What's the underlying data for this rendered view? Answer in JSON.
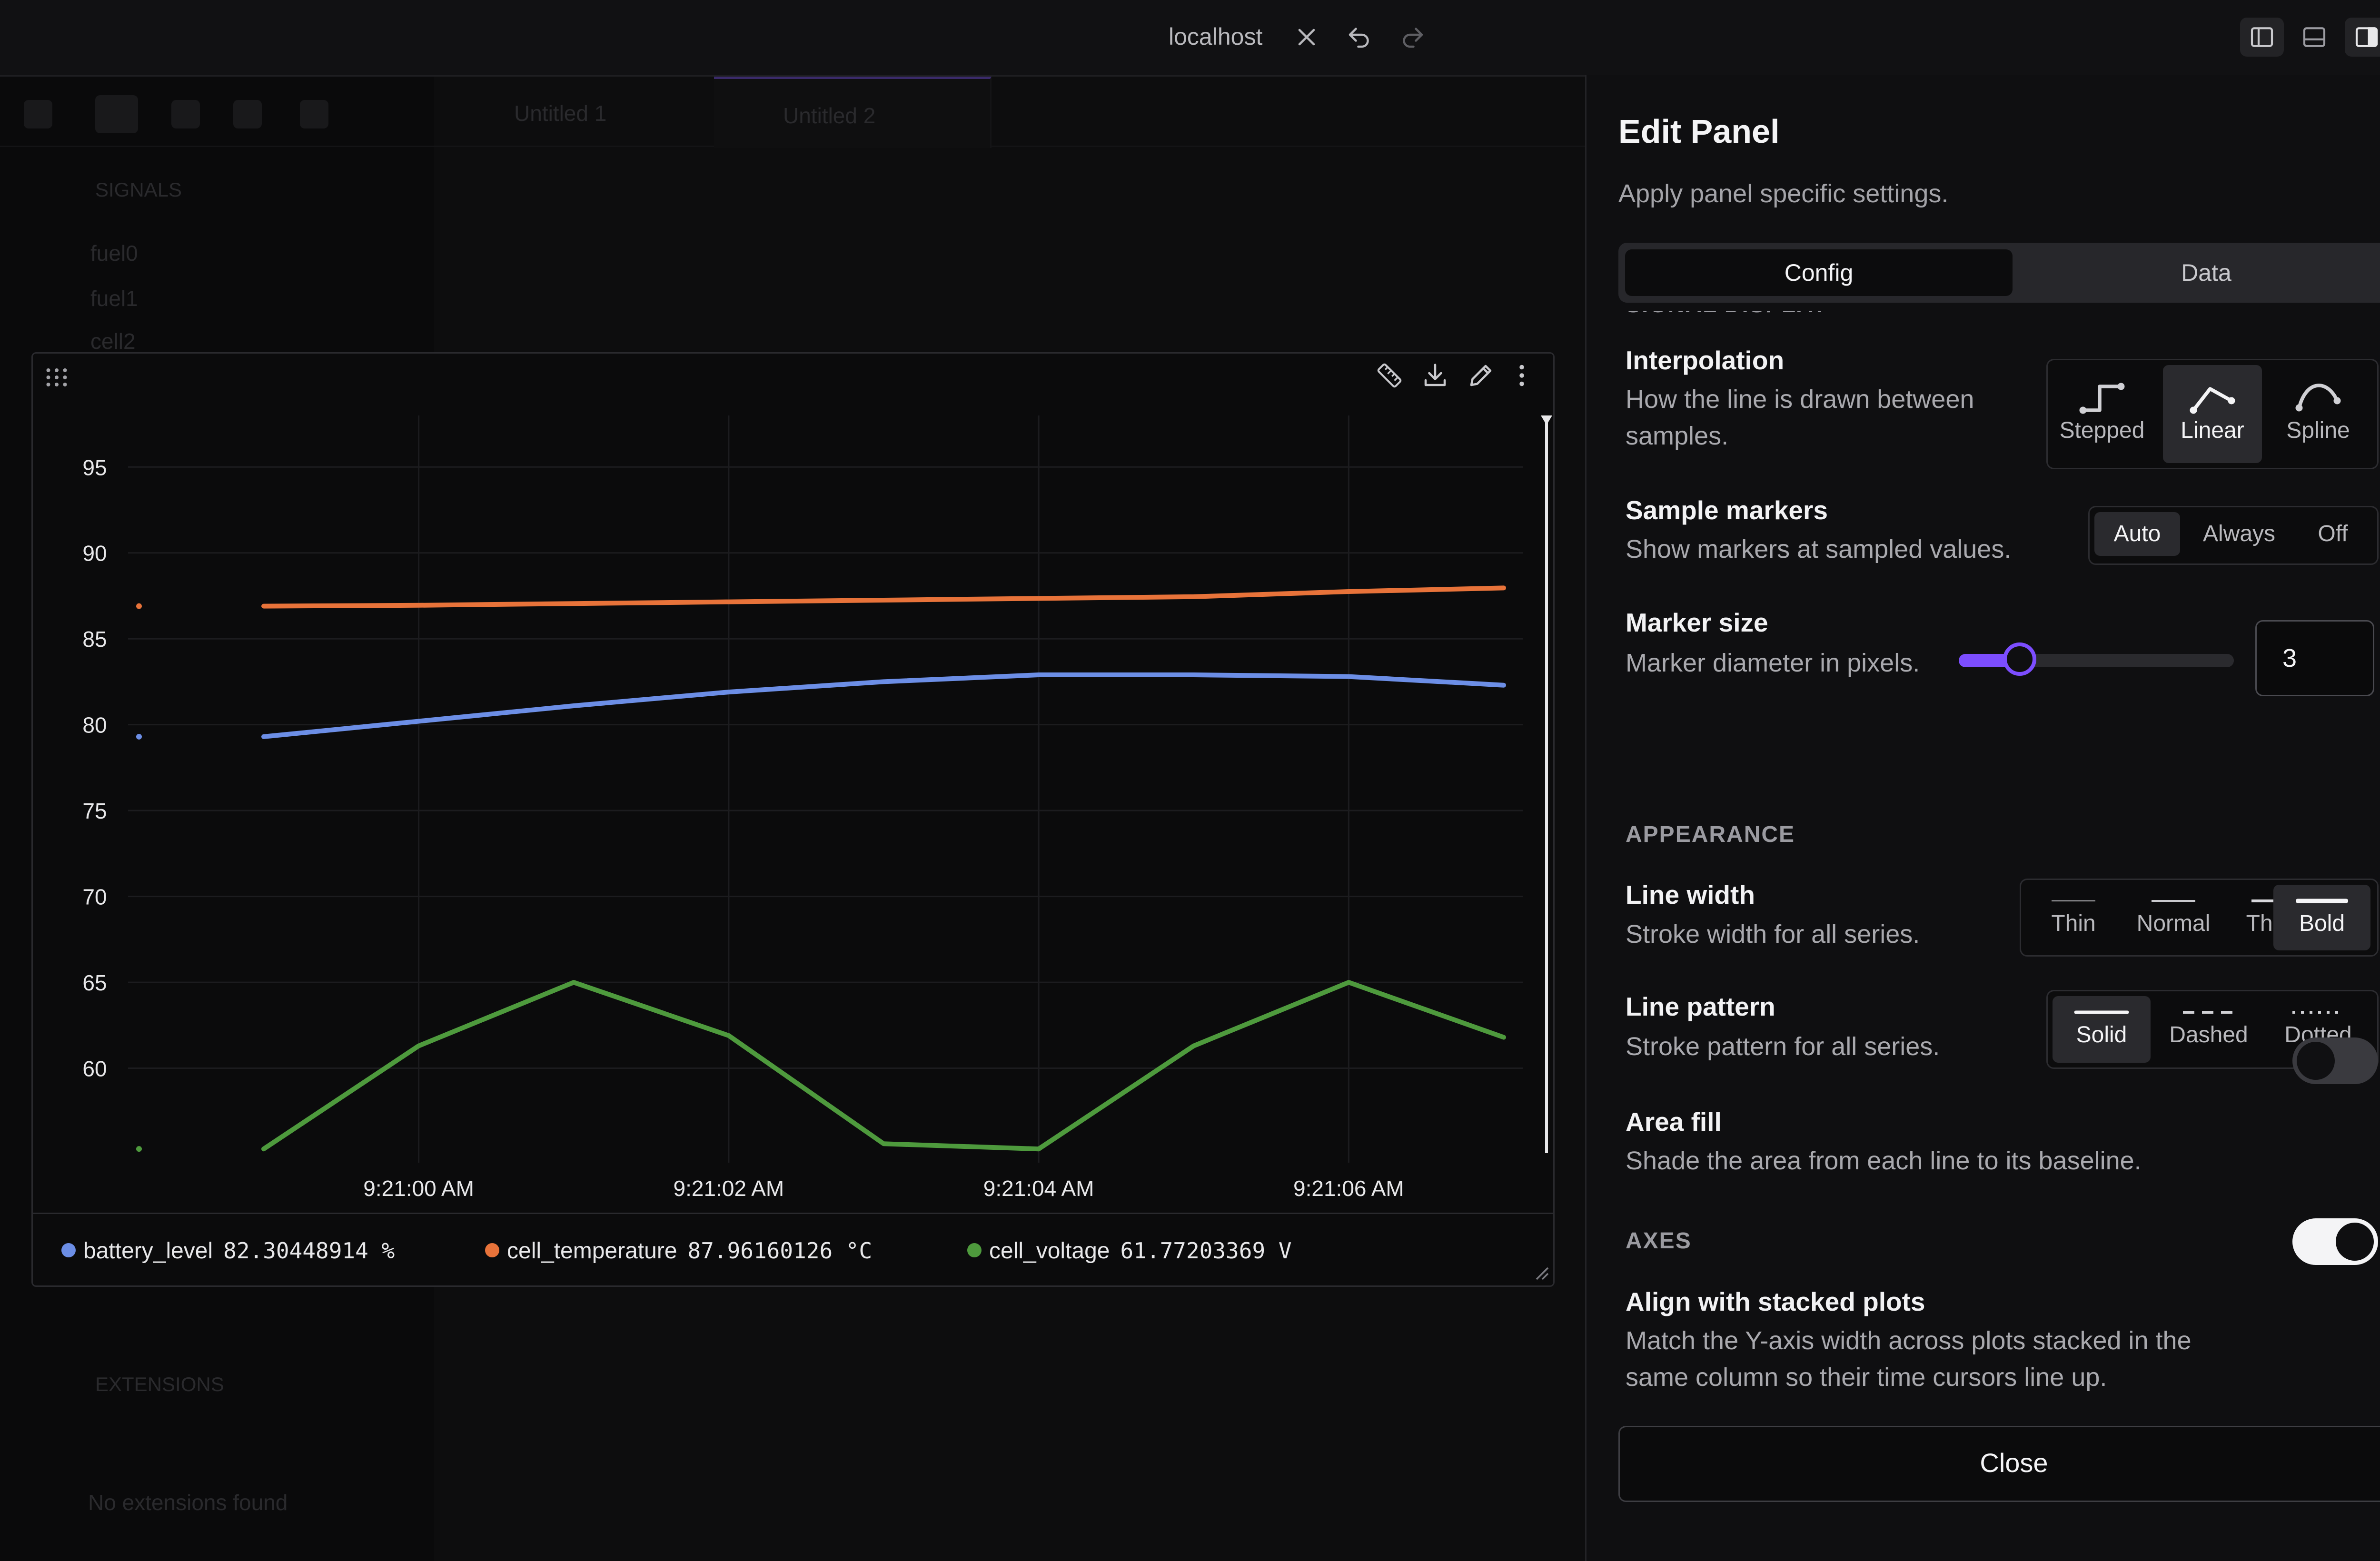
{
  "topbar": {
    "title": "localhost"
  },
  "background_app": {
    "tabs": [
      "Untitled 1",
      "Untitled 2"
    ],
    "sidebar_section": "SIGNALS",
    "sidebar_items": [
      "fuel0",
      "fuel1",
      "cell2"
    ],
    "extensions_title": "EXTENSIONS",
    "extensions_empty": "No extensions found"
  },
  "chart_data": {
    "type": "line",
    "x": [
      "9:20:59",
      "9:21:00",
      "9:21:01",
      "9:21:02",
      "9:21:03",
      "9:21:04",
      "9:21:05",
      "9:21:06",
      "9:21:07"
    ],
    "x_ticks": [
      "9:21:00 AM",
      "9:21:02 AM",
      "9:21:04 AM",
      "9:21:06 AM"
    ],
    "y_ticks": [
      "95",
      "90",
      "85",
      "80",
      "75",
      "70",
      "65",
      "60"
    ],
    "ylim": [
      55,
      98
    ],
    "grid": true,
    "series": [
      {
        "name": "battery_level",
        "color": "#6c8ee6",
        "values": [
          79.3,
          80.2,
          81.1,
          81.9,
          82.5,
          82.9,
          82.9,
          82.8,
          82.3
        ]
      },
      {
        "name": "cell_temperature",
        "color": "#e8733a",
        "values": [
          86.9,
          86.95,
          87.05,
          87.15,
          87.25,
          87.35,
          87.45,
          87.75,
          87.96
        ]
      },
      {
        "name": "cell_voltage",
        "color": "#4e9a3d",
        "values": [
          55.3,
          61.3,
          65.0,
          61.9,
          55.6,
          55.3,
          61.3,
          65.0,
          61.8
        ]
      }
    ]
  },
  "legend": [
    {
      "name": "battery_level",
      "value": "82.30448914 %",
      "color": "#6c8ee6"
    },
    {
      "name": "cell_temperature",
      "value": "87.96160126 °C",
      "color": "#e8733a"
    },
    {
      "name": "cell_voltage",
      "value": "61.77203369 V",
      "color": "#4e9a3d"
    }
  ],
  "edit_panel": {
    "title": "Edit Panel",
    "subtitle": "Apply panel specific settings.",
    "tabs": [
      "Config",
      "Data"
    ],
    "sections": {
      "signal_display": "SIGNAL DISPLAY",
      "appearance": "APPEARANCE",
      "axes": "AXES"
    },
    "interpolation": {
      "label": "Interpolation",
      "desc1": "How the line is drawn between",
      "desc2": "samples.",
      "options": [
        "Stepped",
        "Linear",
        "Spline"
      ],
      "selected": "Linear"
    },
    "sample_markers": {
      "label": "Sample markers",
      "desc": "Show markers at sampled values.",
      "options": [
        "Auto",
        "Always",
        "Off"
      ],
      "selected": "Auto"
    },
    "marker_size": {
      "label": "Marker size",
      "desc": "Marker diameter in pixels.",
      "value": "3"
    },
    "line_width": {
      "label": "Line width",
      "desc": "Stroke width for all series.",
      "options": [
        "Thin",
        "Normal",
        "Thick",
        "Bold"
      ],
      "selected": "Bold"
    },
    "line_pattern": {
      "label": "Line pattern",
      "desc": "Stroke pattern for all series.",
      "options": [
        "Solid",
        "Dashed",
        "Dotted"
      ],
      "selected": "Solid"
    },
    "area_fill": {
      "label": "Area fill",
      "desc": "Shade the area from each line to its baseline.",
      "on": false
    },
    "align_stacked": {
      "label": "Align with stacked plots",
      "desc1": "Match the Y-axis width across plots stacked in the",
      "desc2": "same column so their time cursors line up.",
      "on": true
    },
    "close_label": "Close"
  }
}
